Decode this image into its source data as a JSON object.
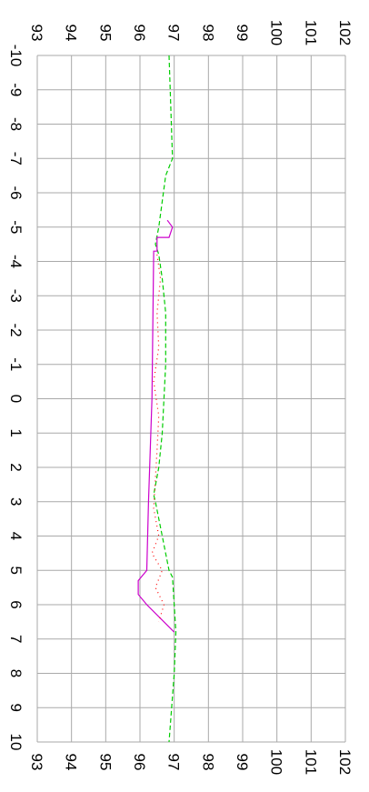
{
  "chart_data": {
    "type": "line",
    "orientation": "rotated-90-clockwise",
    "title": "",
    "xlabel": "",
    "ylabel": "",
    "xlim": [
      -10,
      10
    ],
    "ylim": [
      93,
      102
    ],
    "x_ticks": [
      "-10",
      "-9",
      "-8",
      "-7",
      "-6",
      "-5",
      "-4",
      "-3",
      "-2",
      "-1",
      "0",
      "1",
      "2",
      "3",
      "4",
      "5",
      "6",
      "7",
      "8",
      "9",
      "10"
    ],
    "y_ticks": [
      "93",
      "94",
      "95",
      "96",
      "97",
      "98",
      "99",
      "100",
      "101",
      "102"
    ],
    "grid": true,
    "zero_line": true,
    "series": [
      {
        "color": "#00cc00",
        "style": "dashed",
        "points": [
          [
            -10,
            96.85
          ],
          [
            -7,
            96.95
          ],
          [
            -6.5,
            96.75
          ],
          [
            -5,
            96.55
          ],
          [
            -4.5,
            96.45
          ],
          [
            -4.2,
            96.55
          ],
          [
            -3.5,
            96.65
          ],
          [
            -2.5,
            96.75
          ],
          [
            -1,
            96.75
          ],
          [
            0,
            96.7
          ],
          [
            1,
            96.65
          ],
          [
            2,
            96.55
          ],
          [
            2.8,
            96.4
          ],
          [
            3,
            96.45
          ],
          [
            4,
            96.65
          ],
          [
            5,
            96.85
          ],
          [
            5.2,
            96.95
          ],
          [
            6.8,
            97.05
          ],
          [
            8,
            97.0
          ],
          [
            10,
            96.85
          ]
        ]
      },
      {
        "color": "#cc00cc",
        "style": "solid",
        "points": [
          [
            -5.2,
            96.8
          ],
          [
            -5.0,
            96.95
          ],
          [
            -4.7,
            96.85
          ],
          [
            -4.7,
            96.5
          ],
          [
            -4.3,
            96.5
          ],
          [
            -4.3,
            96.4
          ],
          [
            0,
            96.35
          ],
          [
            3,
            96.25
          ],
          [
            5,
            96.2
          ],
          [
            5.3,
            95.95
          ],
          [
            5.7,
            95.95
          ],
          [
            6.0,
            96.2
          ],
          [
            6.8,
            97.0
          ]
        ]
      },
      {
        "color": "#ff0000",
        "style": "dotted",
        "points": [
          [
            -4.2,
            96.5
          ],
          [
            -3.5,
            96.6
          ],
          [
            -2.5,
            96.5
          ],
          [
            -1.5,
            96.55
          ],
          [
            -0.5,
            96.4
          ],
          [
            0.5,
            96.55
          ],
          [
            1.5,
            96.5
          ],
          [
            3.2,
            96.4
          ],
          [
            4,
            96.55
          ],
          [
            4.5,
            96.35
          ],
          [
            5,
            96.65
          ],
          [
            5.5,
            96.45
          ],
          [
            6,
            96.7
          ],
          [
            6.5,
            96.55
          ]
        ]
      }
    ]
  }
}
